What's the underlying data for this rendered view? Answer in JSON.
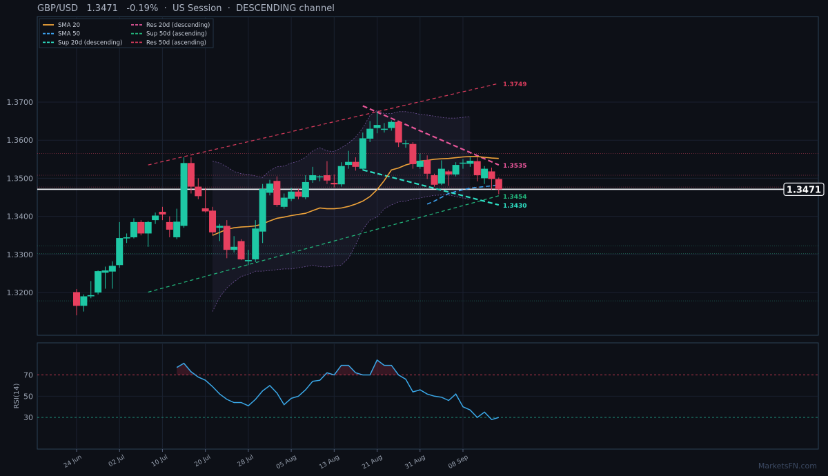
{
  "header": {
    "pair": "GBP/USD",
    "price": "1.3471",
    "change": "-0.19%",
    "sep1": "·",
    "session": "US Session",
    "sep2": "·",
    "channel": "DESCENDING channel"
  },
  "watermark": "MarketsFN.com",
  "colors": {
    "background": "#0d1017",
    "panel_border": "#2b4257",
    "up": "#1ec8a5",
    "down": "#e8405f",
    "sma20": "#f0a43a",
    "sma50": "#3da2f0",
    "res20": "#e8569a",
    "sup20": "#2ee0c4",
    "sup50": "#22b37a",
    "res50": "#d23a5a",
    "rsi": "#3aa8e8",
    "band": "#9a6fd0",
    "price_line": "#f2f4f8"
  },
  "chart_data": [
    {
      "type": "candlestick",
      "title": "GBP/USD",
      "ylim": [
        1.3145,
        1.382
      ],
      "yticks": [
        "1.3200",
        "1.3300",
        "1.3400",
        "1.3500",
        "1.3600",
        "1.3700"
      ],
      "x_tick_labels": [
        "24 Jun",
        "02 Jul",
        "10 Jul",
        "20 Jul",
        "28 Jul",
        "05 Aug",
        "13 Aug",
        "21 Aug",
        "31 Aug",
        "08 Sep"
      ],
      "x_tick_positions": [
        0,
        6,
        12,
        18,
        24,
        30,
        36,
        42,
        48,
        54
      ],
      "grid": true,
      "legend_position": "top-left",
      "legend": [
        {
          "label": "SMA 20",
          "style": "solid",
          "color": "#f0a43a"
        },
        {
          "label": "SMA 50",
          "style": "dashed",
          "color": "#3da2f0"
        },
        {
          "label": "Sup 20d (descending)",
          "style": "dashed",
          "color": "#2ee0c4"
        },
        {
          "label": "Res 20d (descending)",
          "style": "dashed",
          "color": "#e8569a"
        },
        {
          "label": "Sup 50d (ascending)",
          "style": "dashed",
          "color": "#22b37a"
        },
        {
          "label": "Res 50d (ascending)",
          "style": "dashed",
          "color": "#d23a5a"
        }
      ],
      "candles": [
        {
          "o": 1.3201,
          "h": 1.3209,
          "l": 1.314,
          "c": 1.3165
        },
        {
          "o": 1.3165,
          "h": 1.3195,
          "l": 1.315,
          "c": 1.319
        },
        {
          "o": 1.319,
          "h": 1.323,
          "l": 1.3185,
          "c": 1.3193
        },
        {
          "o": 1.32,
          "h": 1.3258,
          "l": 1.3195,
          "c": 1.3256
        },
        {
          "o": 1.3252,
          "h": 1.3268,
          "l": 1.321,
          "c": 1.3258
        },
        {
          "o": 1.3255,
          "h": 1.3282,
          "l": 1.321,
          "c": 1.327
        },
        {
          "o": 1.3272,
          "h": 1.3385,
          "l": 1.3265,
          "c": 1.3343
        },
        {
          "o": 1.3342,
          "h": 1.3355,
          "l": 1.333,
          "c": 1.3345
        },
        {
          "o": 1.3345,
          "h": 1.3395,
          "l": 1.3342,
          "c": 1.3385
        },
        {
          "o": 1.3385,
          "h": 1.339,
          "l": 1.335,
          "c": 1.3355
        },
        {
          "o": 1.3355,
          "h": 1.3388,
          "l": 1.332,
          "c": 1.3385
        },
        {
          "o": 1.339,
          "h": 1.341,
          "l": 1.338,
          "c": 1.3402
        },
        {
          "o": 1.3412,
          "h": 1.3425,
          "l": 1.339,
          "c": 1.3405
        },
        {
          "o": 1.3385,
          "h": 1.34,
          "l": 1.3345,
          "c": 1.3365
        },
        {
          "o": 1.3345,
          "h": 1.342,
          "l": 1.334,
          "c": 1.3386
        },
        {
          "o": 1.3375,
          "h": 1.3555,
          "l": 1.337,
          "c": 1.354
        },
        {
          "o": 1.354,
          "h": 1.3555,
          "l": 1.346,
          "c": 1.3478
        },
        {
          "o": 1.3478,
          "h": 1.35,
          "l": 1.3445,
          "c": 1.3453
        },
        {
          "o": 1.3421,
          "h": 1.3475,
          "l": 1.341,
          "c": 1.3413
        },
        {
          "o": 1.3415,
          "h": 1.3425,
          "l": 1.335,
          "c": 1.3358
        },
        {
          "o": 1.337,
          "h": 1.338,
          "l": 1.3335,
          "c": 1.3375
        },
        {
          "o": 1.3375,
          "h": 1.339,
          "l": 1.329,
          "c": 1.3312
        },
        {
          "o": 1.3312,
          "h": 1.3348,
          "l": 1.3305,
          "c": 1.332
        },
        {
          "o": 1.3335,
          "h": 1.334,
          "l": 1.3285,
          "c": 1.3287
        },
        {
          "o": 1.3282,
          "h": 1.3312,
          "l": 1.3272,
          "c": 1.3285
        },
        {
          "o": 1.3287,
          "h": 1.339,
          "l": 1.328,
          "c": 1.3368
        },
        {
          "o": 1.336,
          "h": 1.3485,
          "l": 1.333,
          "c": 1.3472
        },
        {
          "o": 1.3462,
          "h": 1.3496,
          "l": 1.3455,
          "c": 1.3486
        },
        {
          "o": 1.3493,
          "h": 1.3505,
          "l": 1.3425,
          "c": 1.343
        },
        {
          "o": 1.3425,
          "h": 1.346,
          "l": 1.342,
          "c": 1.3449
        },
        {
          "o": 1.3446,
          "h": 1.3475,
          "l": 1.344,
          "c": 1.3465
        },
        {
          "o": 1.3465,
          "h": 1.3472,
          "l": 1.3445,
          "c": 1.3452
        },
        {
          "o": 1.345,
          "h": 1.3508,
          "l": 1.3445,
          "c": 1.349
        },
        {
          "o": 1.3495,
          "h": 1.353,
          "l": 1.3488,
          "c": 1.3508
        },
        {
          "o": 1.3503,
          "h": 1.3508,
          "l": 1.3492,
          "c": 1.3505
        },
        {
          "o": 1.3508,
          "h": 1.3545,
          "l": 1.3485,
          "c": 1.3494
        },
        {
          "o": 1.3488,
          "h": 1.351,
          "l": 1.3476,
          "c": 1.3484
        },
        {
          "o": 1.3484,
          "h": 1.3542,
          "l": 1.3478,
          "c": 1.3532
        },
        {
          "o": 1.3535,
          "h": 1.3572,
          "l": 1.3525,
          "c": 1.3543
        },
        {
          "o": 1.3543,
          "h": 1.3555,
          "l": 1.352,
          "c": 1.353
        },
        {
          "o": 1.3525,
          "h": 1.362,
          "l": 1.352,
          "c": 1.3605
        },
        {
          "o": 1.3604,
          "h": 1.365,
          "l": 1.3595,
          "c": 1.363
        },
        {
          "o": 1.3632,
          "h": 1.3675,
          "l": 1.3618,
          "c": 1.364
        },
        {
          "o": 1.3628,
          "h": 1.3645,
          "l": 1.362,
          "c": 1.363
        },
        {
          "o": 1.3632,
          "h": 1.3652,
          "l": 1.3625,
          "c": 1.3648
        },
        {
          "o": 1.3648,
          "h": 1.365,
          "l": 1.3582,
          "c": 1.3594
        },
        {
          "o": 1.359,
          "h": 1.36,
          "l": 1.358,
          "c": 1.3592
        },
        {
          "o": 1.359,
          "h": 1.3595,
          "l": 1.3525,
          "c": 1.3537
        },
        {
          "o": 1.353,
          "h": 1.3565,
          "l": 1.3525,
          "c": 1.3546
        },
        {
          "o": 1.3548,
          "h": 1.356,
          "l": 1.3498,
          "c": 1.3512
        },
        {
          "o": 1.3508,
          "h": 1.3512,
          "l": 1.3478,
          "c": 1.3483
        },
        {
          "o": 1.3486,
          "h": 1.3547,
          "l": 1.3482,
          "c": 1.3525
        },
        {
          "o": 1.3518,
          "h": 1.3522,
          "l": 1.348,
          "c": 1.351
        },
        {
          "o": 1.351,
          "h": 1.3542,
          "l": 1.3505,
          "c": 1.3535
        },
        {
          "o": 1.354,
          "h": 1.355,
          "l": 1.3525,
          "c": 1.3541
        },
        {
          "o": 1.3538,
          "h": 1.3555,
          "l": 1.353,
          "c": 1.3546
        },
        {
          "o": 1.3545,
          "h": 1.3555,
          "l": 1.3492,
          "c": 1.3508
        },
        {
          "o": 1.35,
          "h": 1.3532,
          "l": 1.3485,
          "c": 1.3525
        },
        {
          "o": 1.3518,
          "h": 1.3528,
          "l": 1.347,
          "c": 1.3498
        },
        {
          "o": 1.3498,
          "h": 1.3502,
          "l": 1.3458,
          "c": 1.3471
        }
      ],
      "sma20": {
        "start": 19,
        "values": [
          1.335,
          1.3358,
          1.3366,
          1.337,
          1.3372,
          1.3373,
          1.3375,
          1.338,
          1.3388,
          1.3395,
          1.3398,
          1.3402,
          1.3405,
          1.3408,
          1.3415,
          1.3422,
          1.342,
          1.342,
          1.3422,
          1.3426,
          1.3432,
          1.344,
          1.3452,
          1.347,
          1.3494,
          1.3522,
          1.3527,
          1.3535,
          1.354,
          1.3545,
          1.3547,
          1.355,
          1.3551,
          1.3552,
          1.3554,
          1.3556,
          1.3557,
          1.3557,
          1.3555,
          1.3553,
          1.3552
        ]
      },
      "sma50": {
        "start": 49,
        "values": [
          1.3432,
          1.344,
          1.345,
          1.346,
          1.3465,
          1.347,
          1.3474,
          1.3476,
          1.3478,
          1.348,
          1.3483
        ]
      },
      "bollinger": {
        "start": 19,
        "upper": [
          1.3545,
          1.354,
          1.353,
          1.3518,
          1.3512,
          1.351,
          1.3506,
          1.3502,
          1.352,
          1.353,
          1.3532,
          1.354,
          1.3545,
          1.3555,
          1.3572,
          1.358,
          1.3572,
          1.357,
          1.358,
          1.3592,
          1.3608,
          1.3632,
          1.3665,
          1.3678,
          1.367,
          1.367,
          1.3675,
          1.3675,
          1.3672,
          1.3668,
          1.3666,
          1.3663,
          1.366,
          1.3658,
          1.3658,
          1.366,
          1.3662
        ],
        "lower": [
          1.315,
          1.3188,
          1.3212,
          1.3228,
          1.3242,
          1.3248,
          1.3256,
          1.3256,
          1.3258,
          1.326,
          1.3262,
          1.3262,
          1.3265,
          1.3268,
          1.3272,
          1.3268,
          1.3267,
          1.327,
          1.3272,
          1.329,
          1.3325,
          1.3365,
          1.339,
          1.3398,
          1.342,
          1.343,
          1.3438,
          1.344,
          1.3445,
          1.3448,
          1.3452,
          1.3455,
          1.3456,
          1.3456,
          1.3452,
          1.3448,
          1.3444
        ]
      },
      "trendlines": [
        {
          "name": "Res 50d (ascending)",
          "x1": 10,
          "y1": 1.3535,
          "x2": 59,
          "y2": 1.3749,
          "color": "#d23a5a",
          "width": 1.3,
          "dash": "5,4",
          "label": "1.3749"
        },
        {
          "name": "Sup 50d (ascending)",
          "x1": 10,
          "y1": 1.3201,
          "x2": 59,
          "y2": 1.3454,
          "color": "#22b37a",
          "width": 1.3,
          "dash": "5,4",
          "label": "1.3454"
        },
        {
          "name": "Res 20d (descending)",
          "x1": 40,
          "y1": 1.369,
          "x2": 59,
          "y2": 1.3535,
          "color": "#e8569a",
          "width": 2.2,
          "dash": "7,4",
          "label": "1.3535"
        },
        {
          "name": "Sup 20d (descending)",
          "x1": 40,
          "y1": 1.3522,
          "x2": 59,
          "y2": 1.343,
          "color": "#2ee0c4",
          "width": 2.2,
          "dash": "7,4",
          "label": "1.3430"
        }
      ],
      "hlines": [
        {
          "y": 1.3565,
          "color": "#8a2f44"
        },
        {
          "y": 1.3508,
          "color": "#8a2f44"
        },
        {
          "y": 1.3477,
          "color": "#8a2f44"
        },
        {
          "y": 1.3322,
          "color": "#1f6a5a"
        },
        {
          "y": 1.3302,
          "color": "#1f6a5a"
        },
        {
          "y": 1.3178,
          "color": "#1f6a5a"
        }
      ],
      "last_price": {
        "value": 1.3471,
        "label": "1.3471"
      }
    },
    {
      "type": "line",
      "ylabel": "RSI(14)",
      "ylim": [
        0,
        100
      ],
      "yticks": [
        "30",
        "50",
        "70"
      ],
      "overbought": 70,
      "oversold": 30,
      "start": 14,
      "values": [
        77,
        81,
        73,
        68,
        65,
        59,
        52,
        47,
        44,
        44,
        41,
        47,
        55,
        60,
        53,
        42,
        48,
        50,
        56,
        64,
        65,
        72,
        70,
        79,
        79,
        72,
        70,
        70,
        84,
        79,
        79,
        70,
        66,
        54,
        56,
        52,
        50,
        49,
        46,
        52,
        40,
        37,
        30,
        35,
        28,
        30
      ]
    }
  ]
}
